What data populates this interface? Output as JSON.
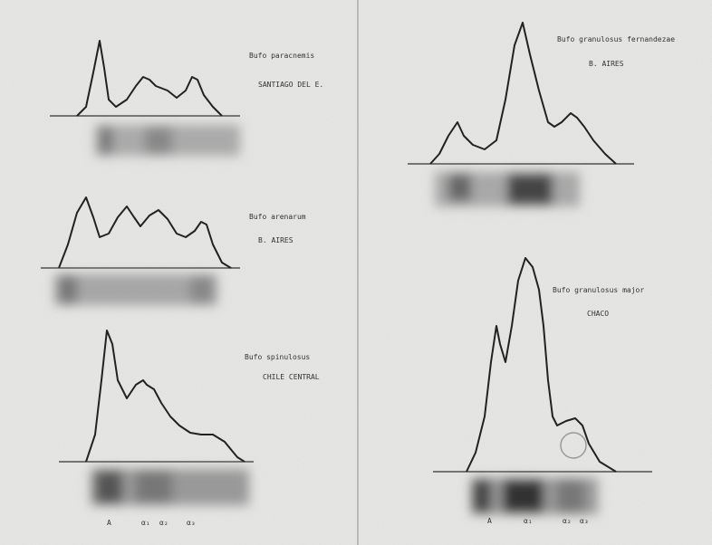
{
  "panels": [
    {
      "species": "Bufo paracnemis",
      "locality": "SANTIAGO DEL E."
    },
    {
      "species": "Bufo arenarum",
      "locality": "B. AIRES"
    },
    {
      "species": "Bufo spinulosus",
      "locality": "CHILE CENTRAL"
    },
    {
      "species": "Bufo granulosus fernandezae",
      "locality": "B. AIRES"
    },
    {
      "species": "Bufo granulosus major",
      "locality": "CHACO"
    }
  ],
  "fraction_labels": {
    "left": [
      "A",
      "α₁",
      "α₂",
      "α₃"
    ],
    "right": [
      "A",
      "α₁",
      "α₂",
      "α₃"
    ]
  }
}
